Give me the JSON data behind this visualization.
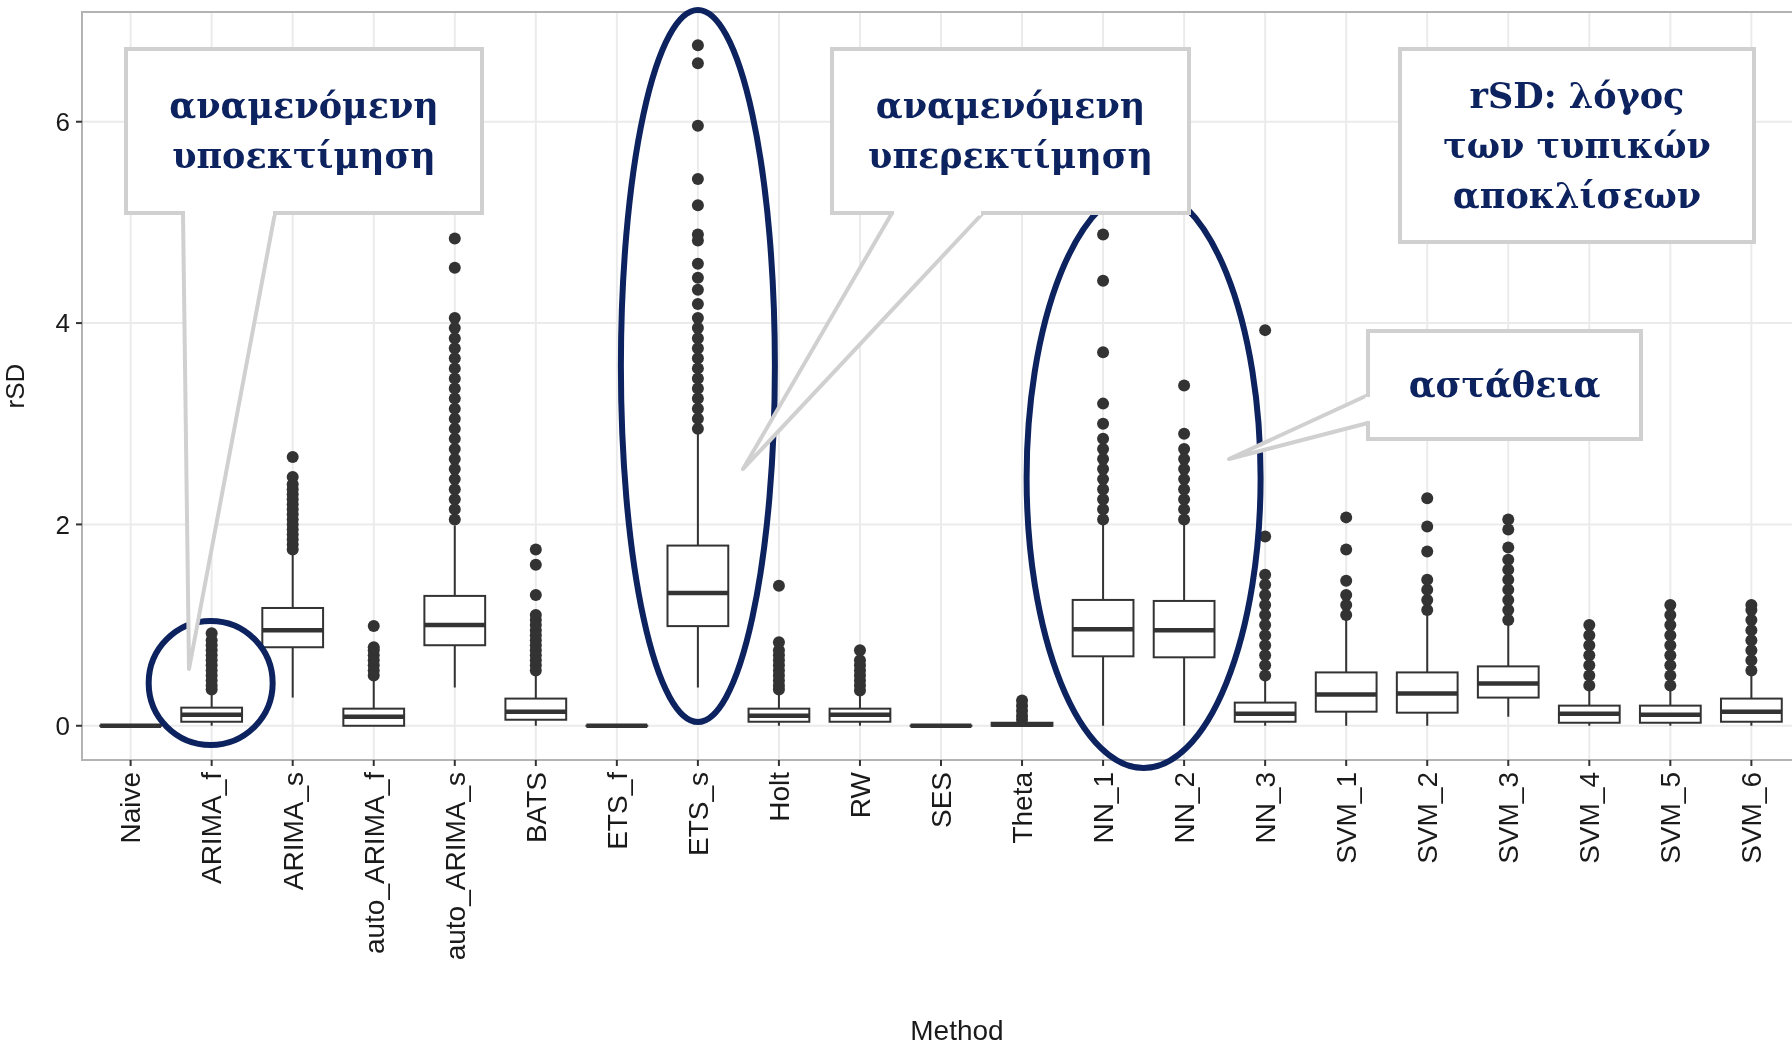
{
  "chart_data": {
    "type": "box",
    "xlabel": "Method",
    "ylabel": "rSD",
    "categories": [
      "Naive",
      "ARIMA_f",
      "ARIMA_s",
      "auto_ARIMA_f",
      "auto_ARIMA_s",
      "BATS",
      "ETS_f",
      "ETS_s",
      "Holt",
      "RW",
      "SES",
      "Theta",
      "NN_1",
      "NN_2",
      "NN_3",
      "SVM_1",
      "SVM_2",
      "SVM_3",
      "SVM_4",
      "SVM_5",
      "SVM_6"
    ],
    "ylim": [
      -0.34,
      7.09
    ],
    "yticks": [
      0,
      2,
      4,
      6
    ],
    "grid": true,
    "color": "#333333",
    "boxes": [
      {
        "low": 0,
        "q1": 0,
        "median": 0,
        "q3": 0,
        "high": 0
      },
      {
        "low": 0,
        "q1": 0.04,
        "median": 0.11,
        "q3": 0.18,
        "high": 0.33,
        "outliers": [
          0.36,
          0.4,
          0.45,
          0.5,
          0.55,
          0.6,
          0.65,
          0.7,
          0.75,
          0.8,
          0.85,
          0.92
        ]
      },
      {
        "low": 0.28,
        "q1": 0.78,
        "median": 0.95,
        "q3": 1.17,
        "high": 1.7,
        "outliers": [
          1.75,
          1.8,
          1.85,
          1.9,
          1.95,
          2.0,
          2.05,
          2.1,
          2.15,
          2.2,
          2.25,
          2.3,
          2.35,
          2.4,
          2.47,
          2.67
        ]
      },
      {
        "low": 0,
        "q1": 0.0,
        "median": 0.09,
        "q3": 0.17,
        "high": 0.47,
        "outliers": [
          0.5,
          0.55,
          0.6,
          0.65,
          0.7,
          0.75,
          0.78,
          0.99
        ]
      },
      {
        "low": 0.38,
        "q1": 0.8,
        "median": 1.0,
        "q3": 1.29,
        "high": 1.99,
        "outliers": [
          2.05,
          2.15,
          2.25,
          2.35,
          2.45,
          2.55,
          2.65,
          2.75,
          2.85,
          2.95,
          3.05,
          3.15,
          3.25,
          3.35,
          3.45,
          3.55,
          3.65,
          3.75,
          3.85,
          3.95,
          4.05,
          4.55,
          4.84
        ]
      },
      {
        "low": 0,
        "q1": 0.06,
        "median": 0.14,
        "q3": 0.27,
        "high": 0.52,
        "outliers": [
          0.55,
          0.6,
          0.65,
          0.7,
          0.75,
          0.8,
          0.85,
          0.9,
          0.95,
          1.0,
          1.05,
          1.1,
          1.3,
          1.6,
          1.75
        ]
      },
      {
        "low": 0,
        "q1": 0,
        "median": 0,
        "q3": 0,
        "high": 0
      },
      {
        "low": 0.38,
        "q1": 0.99,
        "median": 1.32,
        "q3": 1.79,
        "high": 2.91,
        "outliers": [
          2.95,
          3.05,
          3.15,
          3.25,
          3.35,
          3.45,
          3.55,
          3.65,
          3.75,
          3.85,
          3.95,
          4.05,
          4.19,
          4.33,
          4.45,
          4.59,
          4.82,
          4.88,
          5.17,
          5.43,
          5.96,
          6.58,
          6.76
        ]
      },
      {
        "low": 0,
        "q1": 0.04,
        "median": 0.1,
        "q3": 0.17,
        "high": 0.33,
        "outliers": [
          0.36,
          0.4,
          0.45,
          0.5,
          0.55,
          0.6,
          0.65,
          0.7,
          0.75,
          0.83,
          1.39
        ]
      },
      {
        "low": 0,
        "q1": 0.04,
        "median": 0.11,
        "q3": 0.17,
        "high": 0.33,
        "outliers": [
          0.35,
          0.4,
          0.45,
          0.5,
          0.55,
          0.6,
          0.65,
          0.75
        ]
      },
      {
        "low": 0,
        "q1": 0,
        "median": 0,
        "q3": 0,
        "high": 0
      },
      {
        "low": 0,
        "q1": 0,
        "median": 0.01,
        "q3": 0.03,
        "high": 0.05,
        "outliers": [
          0.06,
          0.1,
          0.15,
          0.2,
          0.25
        ]
      },
      {
        "low": 0,
        "q1": 0.69,
        "median": 0.96,
        "q3": 1.25,
        "high": 2.04,
        "outliers": [
          2.05,
          2.15,
          2.25,
          2.35,
          2.45,
          2.55,
          2.65,
          2.75,
          2.85,
          3.0,
          3.2,
          3.71,
          4.42,
          4.88
        ]
      },
      {
        "low": 0,
        "q1": 0.68,
        "median": 0.95,
        "q3": 1.24,
        "high": 2.01,
        "outliers": [
          2.05,
          2.15,
          2.25,
          2.35,
          2.45,
          2.55,
          2.65,
          2.75,
          2.9,
          3.38
        ]
      },
      {
        "low": 0,
        "q1": 0.04,
        "median": 0.12,
        "q3": 0.23,
        "high": 0.47,
        "outliers": [
          0.5,
          0.6,
          0.7,
          0.8,
          0.9,
          1.0,
          1.1,
          1.2,
          1.3,
          1.4,
          1.5,
          1.88,
          3.93
        ]
      },
      {
        "low": 0,
        "q1": 0.14,
        "median": 0.31,
        "q3": 0.53,
        "high": 1.07,
        "outliers": [
          1.1,
          1.2,
          1.3,
          1.44,
          1.75,
          2.07
        ]
      },
      {
        "low": 0,
        "q1": 0.13,
        "median": 0.32,
        "q3": 0.53,
        "high": 1.1,
        "outliers": [
          1.15,
          1.25,
          1.35,
          1.45,
          1.73,
          1.98,
          2.26
        ]
      },
      {
        "low": 0.09,
        "q1": 0.28,
        "median": 0.42,
        "q3": 0.59,
        "high": 1.03,
        "outliers": [
          1.05,
          1.15,
          1.25,
          1.35,
          1.45,
          1.55,
          1.65,
          1.77,
          1.95,
          2.05
        ]
      },
      {
        "low": 0,
        "q1": 0.03,
        "median": 0.12,
        "q3": 0.2,
        "high": 0.38,
        "outliers": [
          0.4,
          0.5,
          0.6,
          0.7,
          0.8,
          0.9,
          1.0
        ]
      },
      {
        "low": 0,
        "q1": 0.03,
        "median": 0.11,
        "q3": 0.2,
        "high": 0.38,
        "outliers": [
          0.4,
          0.5,
          0.6,
          0.7,
          0.8,
          0.9,
          1.0,
          1.1,
          1.2
        ]
      },
      {
        "low": 0,
        "q1": 0.04,
        "median": 0.14,
        "q3": 0.27,
        "high": 0.54,
        "outliers": [
          0.55,
          0.65,
          0.75,
          0.85,
          0.95,
          1.05,
          1.15,
          1.2
        ]
      }
    ],
    "annotations": [
      "αναμενόμενη\nυποεκτίμηση",
      "αναμενόμενη\nυπερεκτίμηση",
      "rSD: λόγος\nτων τυπικών\nαποκλίσεων",
      "αστάθεια"
    ]
  }
}
